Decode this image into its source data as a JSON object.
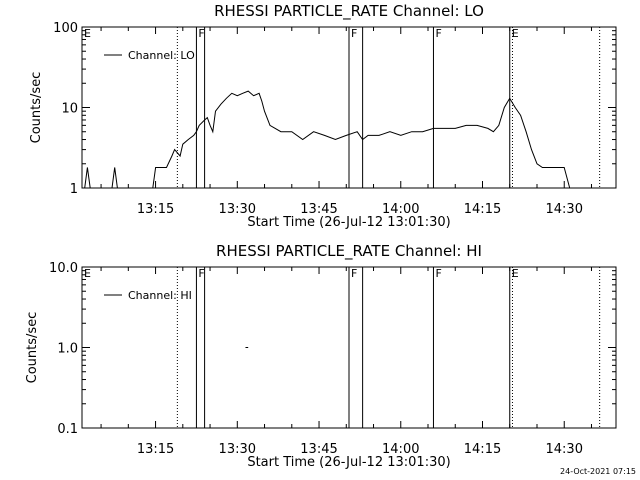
{
  "footer": {
    "timestamp": "24-Oct-2021 07:15"
  },
  "chart_data": [
    {
      "type": "line",
      "title": "RHESSI PARTICLE_RATE Channel: LO",
      "xlabel": "Start Time (26-Jul-12 13:01:30)",
      "ylabel": "Counts/sec",
      "yscale": "log",
      "xlim": [
        "13:01:30",
        "14:39:30"
      ],
      "ylim": [
        1,
        100
      ],
      "x_ticks": [
        "13:15",
        "13:30",
        "13:45",
        "14:00",
        "14:15",
        "14:30"
      ],
      "y_ticks": [
        "1",
        "10",
        "100"
      ],
      "grid": false,
      "legend_position": "top-left",
      "series": [
        {
          "name": "Channel: LO",
          "x": [
            "13:02:00",
            "13:02:30",
            "13:03:00",
            "13:03:30",
            "13:04:00",
            "13:06:00",
            "13:07:00",
            "13:07:30",
            "13:08:00",
            "13:10:00",
            "13:12:00",
            "13:14:30",
            "13:15:00",
            "13:15:30",
            "13:17:00",
            "13:18:00",
            "13:18:30",
            "13:19:30",
            "13:20:00",
            "13:21:00",
            "13:22:00",
            "13:22:30",
            "13:23:00",
            "13:24:00",
            "13:24:30",
            "13:25:00",
            "13:25:30",
            "13:26:00",
            "13:27:00",
            "13:28:00",
            "13:29:00",
            "13:30:00",
            "13:31:00",
            "13:32:00",
            "13:33:00",
            "13:34:00",
            "13:34:30",
            "13:35:00",
            "13:36:00",
            "13:38:00",
            "13:40:00",
            "13:42:00",
            "13:44:00",
            "13:46:00",
            "13:48:00",
            "13:50:00",
            "13:52:00",
            "13:53:00",
            "13:54:00",
            "13:56:00",
            "13:58:00",
            "14:00:00",
            "14:02:00",
            "14:04:00",
            "14:06:00",
            "14:08:00",
            "14:10:00",
            "14:12:00",
            "14:14:00",
            "14:16:00",
            "14:17:00",
            "14:18:00",
            "14:19:00",
            "14:20:00",
            "14:21:00",
            "14:22:00",
            "14:23:00",
            "14:24:00",
            "14:25:00",
            "14:26:00",
            "14:27:00",
            "14:28:00",
            "14:29:00",
            "14:30:00",
            "14:31:00",
            "14:32:00",
            "14:33:00",
            "14:34:00"
          ],
          "y": [
            1,
            1.8,
            1,
            1,
            1,
            1,
            1,
            1.8,
            1,
            1,
            1,
            1,
            1.8,
            1.8,
            1.8,
            2.5,
            3,
            2.5,
            3.5,
            4,
            4.5,
            5,
            6,
            7,
            7.5,
            6,
            5,
            9,
            11,
            13,
            15,
            14,
            15,
            16,
            14,
            15,
            12,
            9,
            6,
            5,
            5,
            4,
            5,
            4.5,
            4,
            4.5,
            5,
            4,
            4.5,
            4.5,
            5,
            4.5,
            5,
            5,
            5.5,
            5.5,
            5.5,
            6,
            6,
            5.5,
            5,
            6,
            10,
            13,
            10,
            8,
            5,
            3,
            2,
            1.8,
            1.8,
            1.8,
            1.8,
            1.8,
            1,
            1,
            1,
            1
          ]
        }
      ],
      "annotations": {
        "flag_labels": [
          "E",
          "F",
          "F",
          "F",
          "E"
        ],
        "flag_lines": [
          "13:22:30",
          "13:24:00",
          "13:50:30",
          "13:53:00",
          "14:06:00",
          "14:20:00"
        ],
        "dotted_lines": [
          "13:19:00",
          "14:20:30",
          "14:36:30"
        ]
      }
    },
    {
      "type": "line",
      "title": "RHESSI PARTICLE_RATE Channel: HI",
      "xlabel": "Start Time (26-Jul-12 13:01:30)",
      "ylabel": "Counts/sec",
      "yscale": "log",
      "xlim": [
        "13:01:30",
        "14:39:30"
      ],
      "ylim": [
        0.1,
        10
      ],
      "x_ticks": [
        "13:15",
        "13:30",
        "13:45",
        "14:00",
        "14:15",
        "14:30"
      ],
      "y_ticks": [
        "0.1",
        "1.0",
        "10.0"
      ],
      "grid": false,
      "legend_position": "top-left",
      "series": [
        {
          "name": "Channel: HI",
          "x": [
            "13:31:30",
            "13:32:00"
          ],
          "y": [
            1,
            1
          ]
        }
      ],
      "annotations": {
        "flag_labels": [
          "E",
          "F",
          "F",
          "F",
          "E"
        ],
        "flag_lines": [
          "13:22:30",
          "13:24:00",
          "13:50:30",
          "13:53:00",
          "14:06:00",
          "14:20:00"
        ],
        "dotted_lines": [
          "13:19:00",
          "14:20:30",
          "14:36:30"
        ]
      }
    }
  ]
}
